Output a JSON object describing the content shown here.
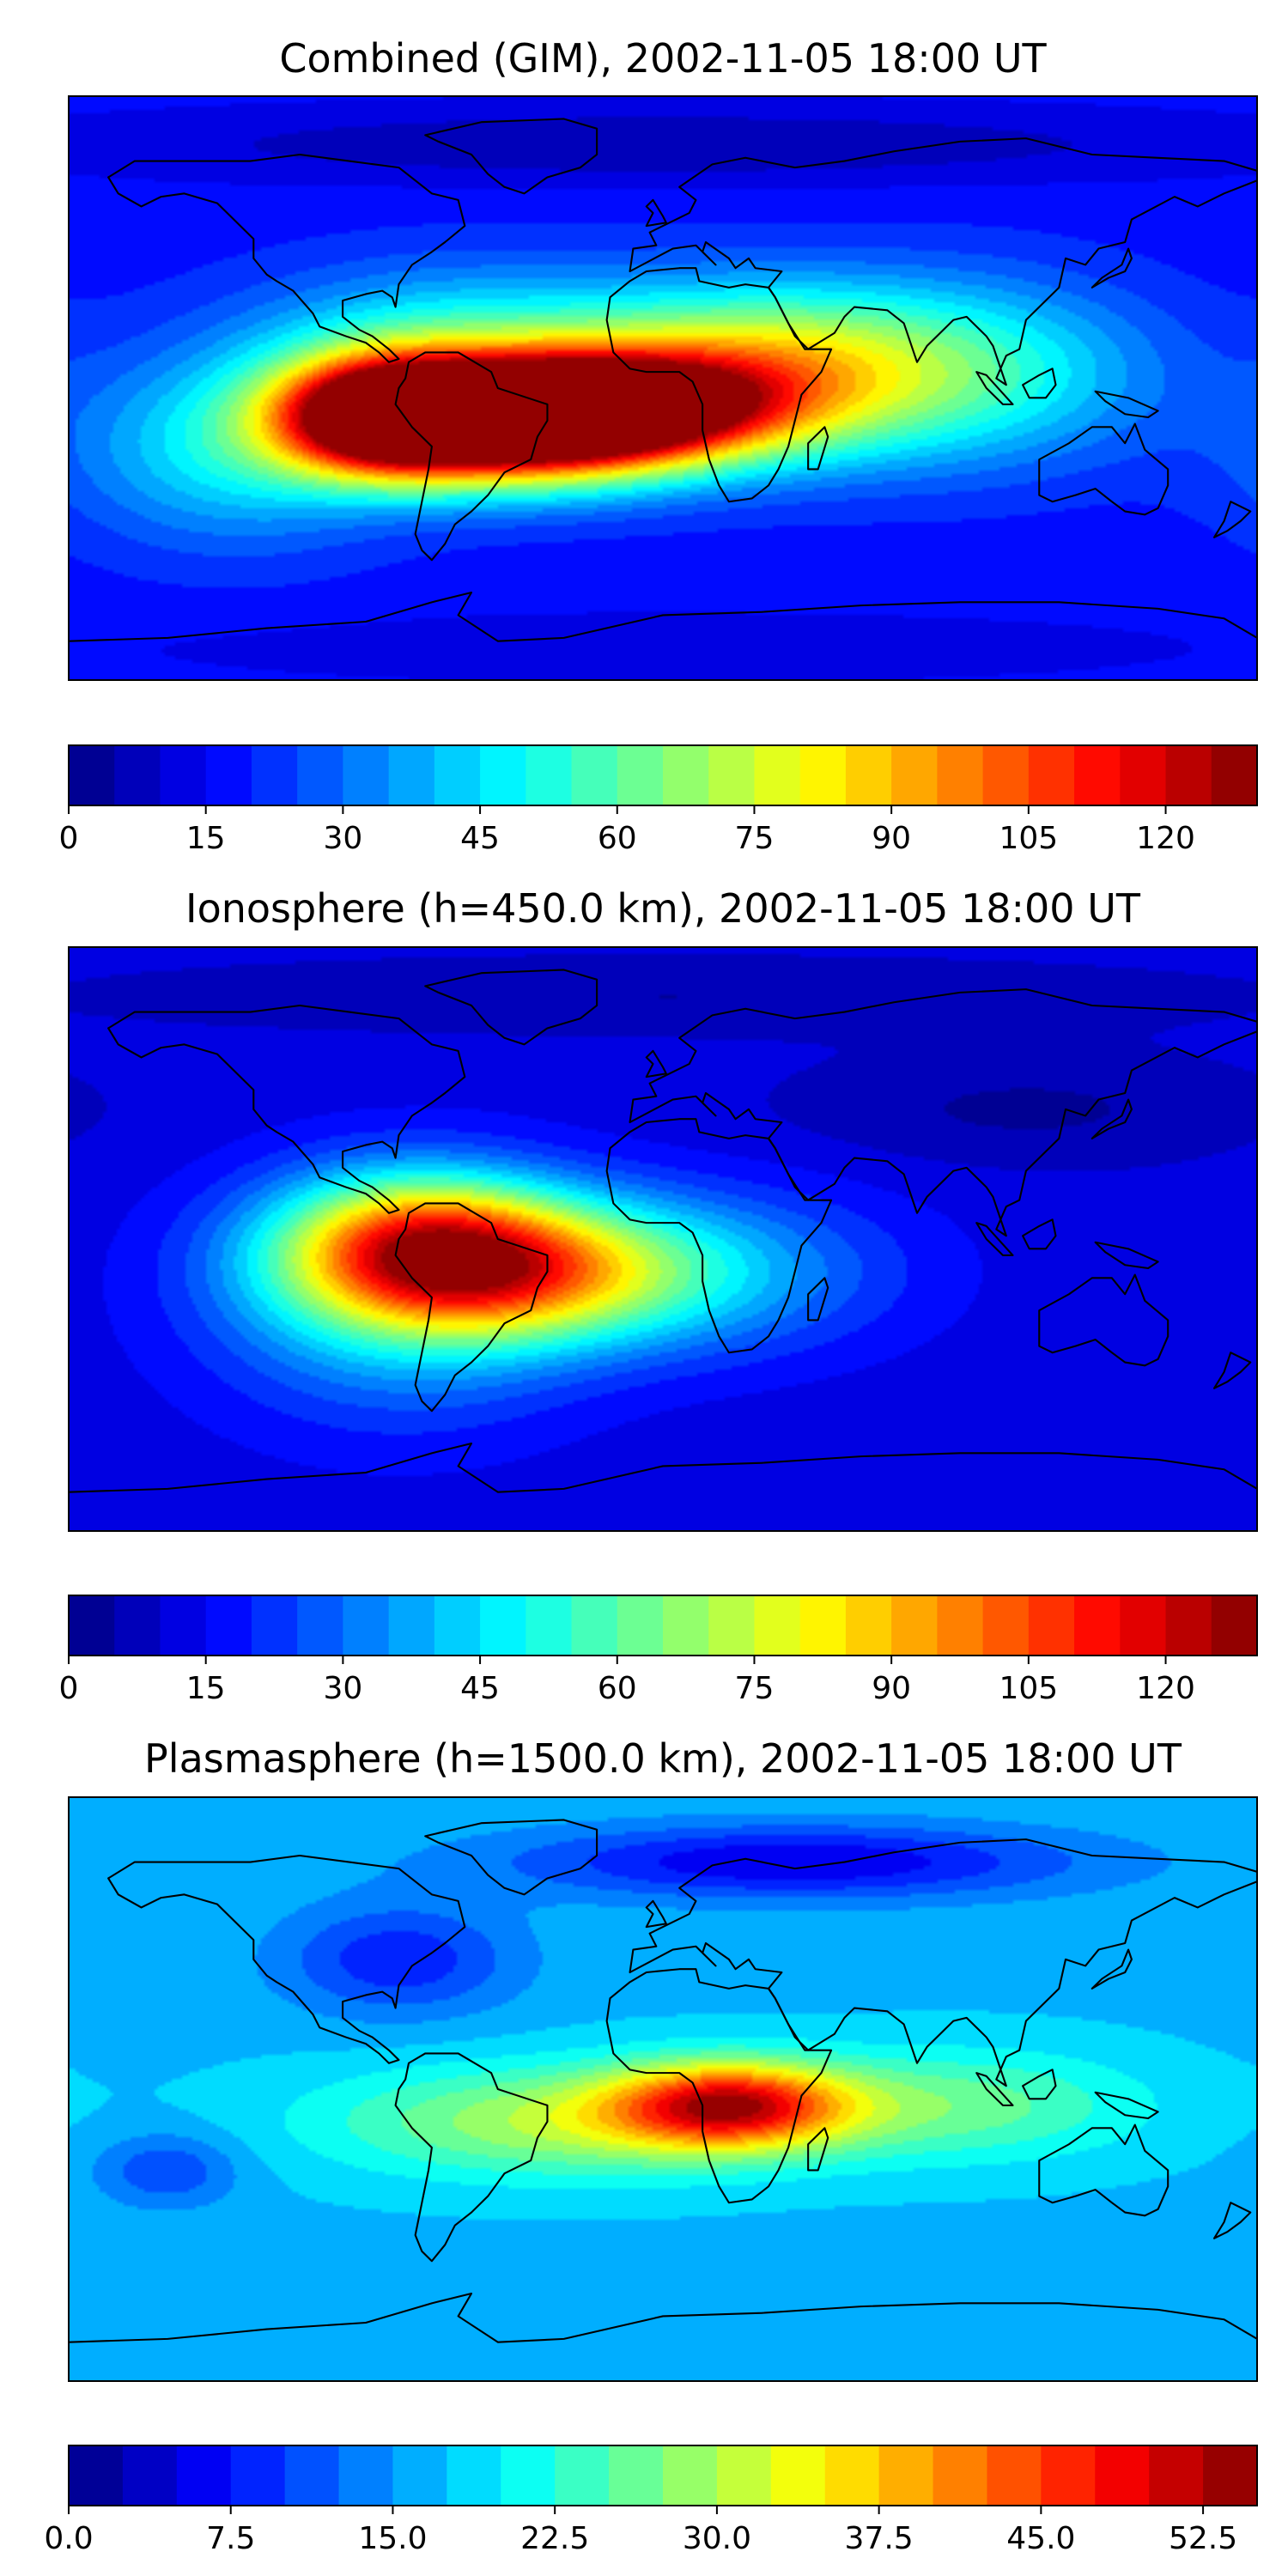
{
  "chart_data": [
    {
      "type": "heatmap",
      "title": "Combined (GIM), 2002-11-05 18:00 UT",
      "xlabel": "",
      "ylabel": "",
      "grid": false,
      "colormap": "jet",
      "colorbar": {
        "min": 0,
        "max": 130,
        "levels": 26,
        "step": 5,
        "tick_values": [
          0,
          15,
          30,
          45,
          60,
          75,
          90,
          105,
          120
        ],
        "tick_labels": [
          "0",
          "15",
          "30",
          "45",
          "60",
          "75",
          "90",
          "105",
          "120"
        ]
      },
      "background_value": 17,
      "blobs": [
        {
          "lon": -48,
          "lat": -12,
          "value": 118,
          "sx": 38,
          "sy": 13
        },
        {
          "lon": -18,
          "lat": -6,
          "value": 108,
          "sx": 35,
          "sy": 11
        },
        {
          "lon": -85,
          "lat": -8,
          "value": 102,
          "sx": 22,
          "sy": 12
        },
        {
          "lon": -60,
          "lat": 10,
          "value": 55,
          "sx": 45,
          "sy": 18
        },
        {
          "lon": 30,
          "lat": 5,
          "value": 75,
          "sx": 40,
          "sy": 18
        },
        {
          "lon": 95,
          "lat": 5,
          "value": 48,
          "sx": 40,
          "sy": 20
        },
        {
          "lon": -130,
          "lat": -20,
          "value": 45,
          "sx": 35,
          "sy": 20
        },
        {
          "lon": 0,
          "lat": 75,
          "value": 5,
          "sx": 120,
          "sy": 8
        },
        {
          "lon": 0,
          "lat": -80,
          "value": 12,
          "sx": 120,
          "sy": 8
        }
      ]
    },
    {
      "type": "heatmap",
      "title": "Ionosphere  (h=450.0 km), 2002-11-05 18:00 UT",
      "xlabel": "",
      "ylabel": "",
      "grid": false,
      "colormap": "jet",
      "colorbar": {
        "min": 0,
        "max": 130,
        "levels": 26,
        "step": 5,
        "tick_values": [
          0,
          15,
          30,
          45,
          60,
          75,
          90,
          105,
          120
        ],
        "tick_labels": [
          "0",
          "15",
          "30",
          "45",
          "60",
          "75",
          "90",
          "105",
          "120"
        ]
      },
      "background_value": 12,
      "blobs": [
        {
          "lon": -45,
          "lat": -10,
          "value": 80,
          "sx": 40,
          "sy": 15
        },
        {
          "lon": -75,
          "lat": 0,
          "value": 68,
          "sx": 30,
          "sy": 15
        },
        {
          "lon": -80,
          "lat": -20,
          "value": 40,
          "sx": 40,
          "sy": 25
        },
        {
          "lon": 20,
          "lat": -10,
          "value": 30,
          "sx": 40,
          "sy": 18
        },
        {
          "lon": 0,
          "lat": 75,
          "value": 5,
          "sx": 120,
          "sy": 8
        },
        {
          "lon": 110,
          "lat": 40,
          "value": 4,
          "sx": 50,
          "sy": 12
        }
      ]
    },
    {
      "type": "heatmap",
      "title": "Plasmasphere (h=1500.0 km), 2002-11-05 18:00 UT",
      "xlabel": "",
      "ylabel": "",
      "grid": false,
      "colormap": "jet",
      "colorbar": {
        "min": 0,
        "max": 55,
        "levels": 22,
        "step": 2.5,
        "tick_values": [
          0,
          7.5,
          15,
          22.5,
          30,
          37.5,
          45,
          52.5
        ],
        "tick_labels": [
          "0.0",
          "7.5",
          "15.0",
          "22.5",
          "30.0",
          "37.5",
          "45.0",
          "52.5"
        ]
      },
      "background_value": 17,
      "blobs": [
        {
          "lon": 20,
          "lat": -5,
          "value": 46,
          "sx": 25,
          "sy": 9
        },
        {
          "lon": -30,
          "lat": -10,
          "value": 30,
          "sx": 50,
          "sy": 12
        },
        {
          "lon": 90,
          "lat": -5,
          "value": 26,
          "sx": 40,
          "sy": 12
        },
        {
          "lon": -80,
          "lat": 40,
          "value": 8,
          "sx": 25,
          "sy": 12
        },
        {
          "lon": 40,
          "lat": 70,
          "value": 5,
          "sx": 60,
          "sy": 8
        },
        {
          "lon": -150,
          "lat": -25,
          "value": 10,
          "sx": 15,
          "sy": 8
        }
      ]
    }
  ],
  "coastline_color": "#000000",
  "icons": [
    "world-map"
  ]
}
